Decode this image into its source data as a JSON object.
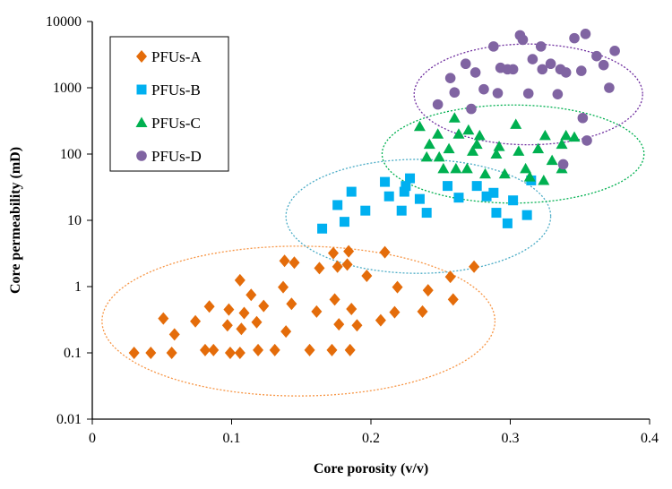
{
  "chart_data": {
    "type": "scatter",
    "xlabel": "Core porosity (v/v)",
    "ylabel": "Core permeability (mD)",
    "x_scale": "linear",
    "y_scale": "log",
    "xlim": [
      0,
      0.4
    ],
    "ylim": [
      0.01,
      10000
    ],
    "x_ticks": [
      {
        "value": 0,
        "label": "0"
      },
      {
        "value": 0.1,
        "label": "0.1"
      },
      {
        "value": 0.2,
        "label": "0.2"
      },
      {
        "value": 0.3,
        "label": "0.3"
      },
      {
        "value": 0.4,
        "label": "0.4"
      }
    ],
    "y_ticks": [
      {
        "value": 0.01,
        "label": "0.01"
      },
      {
        "value": 0.1,
        "label": "0.1"
      },
      {
        "value": 1,
        "label": "1"
      },
      {
        "value": 10,
        "label": "10"
      },
      {
        "value": 100,
        "label": "100"
      },
      {
        "value": 1000,
        "label": "1000"
      },
      {
        "value": 10000,
        "label": "10000"
      }
    ],
    "grid": false,
    "legend_position": "top-left",
    "series": [
      {
        "name": "PFUs-A",
        "marker": "diamond",
        "color": "#E46C0A",
        "ellipse_color": "#F79646",
        "points": [
          [
            0.03,
            0.1
          ],
          [
            0.042,
            0.1
          ],
          [
            0.051,
            0.33
          ],
          [
            0.057,
            0.1
          ],
          [
            0.059,
            0.19
          ],
          [
            0.074,
            0.3
          ],
          [
            0.081,
            0.11
          ],
          [
            0.084,
            0.5
          ],
          [
            0.087,
            0.11
          ],
          [
            0.097,
            0.26
          ],
          [
            0.098,
            0.45
          ],
          [
            0.099,
            0.1
          ],
          [
            0.106,
            0.1
          ],
          [
            0.106,
            1.25
          ],
          [
            0.107,
            0.23
          ],
          [
            0.109,
            0.4
          ],
          [
            0.114,
            0.75
          ],
          [
            0.118,
            0.29
          ],
          [
            0.119,
            0.11
          ],
          [
            0.123,
            0.51
          ],
          [
            0.131,
            0.11
          ],
          [
            0.137,
            0.98
          ],
          [
            0.138,
            2.45
          ],
          [
            0.139,
            0.21
          ],
          [
            0.143,
            0.55
          ],
          [
            0.145,
            2.3
          ],
          [
            0.156,
            0.11
          ],
          [
            0.161,
            0.42
          ],
          [
            0.163,
            1.9
          ],
          [
            0.172,
            0.11
          ],
          [
            0.173,
            3.2
          ],
          [
            0.174,
            0.64
          ],
          [
            0.176,
            2.0
          ],
          [
            0.177,
            0.27
          ],
          [
            0.183,
            2.15
          ],
          [
            0.184,
            3.4
          ],
          [
            0.185,
            0.11
          ],
          [
            0.186,
            0.46
          ],
          [
            0.19,
            0.26
          ],
          [
            0.197,
            1.45
          ],
          [
            0.207,
            0.31
          ],
          [
            0.21,
            3.3
          ],
          [
            0.217,
            0.41
          ],
          [
            0.219,
            0.98
          ],
          [
            0.237,
            0.42
          ],
          [
            0.241,
            0.88
          ],
          [
            0.257,
            1.4
          ],
          [
            0.259,
            0.64
          ],
          [
            0.274,
            2.0
          ]
        ]
      },
      {
        "name": "PFUs-B",
        "marker": "square",
        "color": "#00B0F0",
        "ellipse_color": "#4BACC6",
        "points": [
          [
            0.165,
            7.5
          ],
          [
            0.176,
            17
          ],
          [
            0.181,
            9.5
          ],
          [
            0.186,
            27
          ],
          [
            0.196,
            14
          ],
          [
            0.21,
            38
          ],
          [
            0.213,
            23
          ],
          [
            0.222,
            14
          ],
          [
            0.224,
            27
          ],
          [
            0.225,
            33
          ],
          [
            0.228,
            43
          ],
          [
            0.235,
            21
          ],
          [
            0.24,
            13
          ],
          [
            0.255,
            33
          ],
          [
            0.263,
            22
          ],
          [
            0.276,
            33
          ],
          [
            0.283,
            23
          ],
          [
            0.288,
            26
          ],
          [
            0.29,
            13
          ],
          [
            0.298,
            9
          ],
          [
            0.302,
            20
          ],
          [
            0.312,
            12
          ],
          [
            0.315,
            40
          ]
        ]
      },
      {
        "name": "PFUs-C",
        "marker": "triangle",
        "color": "#00B050",
        "ellipse_color": "#00B050",
        "points": [
          [
            0.235,
            260
          ],
          [
            0.24,
            90
          ],
          [
            0.242,
            140
          ],
          [
            0.248,
            200
          ],
          [
            0.249,
            90
          ],
          [
            0.252,
            60
          ],
          [
            0.256,
            120
          ],
          [
            0.26,
            350
          ],
          [
            0.261,
            60
          ],
          [
            0.263,
            200
          ],
          [
            0.269,
            60
          ],
          [
            0.27,
            230
          ],
          [
            0.273,
            110
          ],
          [
            0.276,
            140
          ],
          [
            0.278,
            190
          ],
          [
            0.282,
            50
          ],
          [
            0.29,
            100
          ],
          [
            0.292,
            130
          ],
          [
            0.296,
            50
          ],
          [
            0.304,
            280
          ],
          [
            0.306,
            110
          ],
          [
            0.311,
            60
          ],
          [
            0.314,
            45
          ],
          [
            0.32,
            120
          ],
          [
            0.324,
            40
          ],
          [
            0.325,
            190
          ],
          [
            0.33,
            80
          ],
          [
            0.337,
            140
          ],
          [
            0.34,
            190
          ],
          [
            0.346,
            180
          ],
          [
            0.337,
            60
          ]
        ]
      },
      {
        "name": "PFUs-D",
        "marker": "circle",
        "color": "#8064A2",
        "ellipse_color": "#7030A0",
        "points": [
          [
            0.248,
            560
          ],
          [
            0.257,
            1400
          ],
          [
            0.26,
            850
          ],
          [
            0.268,
            2300
          ],
          [
            0.272,
            480
          ],
          [
            0.275,
            1700
          ],
          [
            0.281,
            950
          ],
          [
            0.288,
            4200
          ],
          [
            0.291,
            830
          ],
          [
            0.293,
            2000
          ],
          [
            0.298,
            1900
          ],
          [
            0.302,
            1900
          ],
          [
            0.307,
            6200
          ],
          [
            0.309,
            5300
          ],
          [
            0.313,
            820
          ],
          [
            0.316,
            2700
          ],
          [
            0.322,
            4200
          ],
          [
            0.323,
            1900
          ],
          [
            0.329,
            2300
          ],
          [
            0.334,
            800
          ],
          [
            0.336,
            1900
          ],
          [
            0.34,
            1700
          ],
          [
            0.346,
            5600
          ],
          [
            0.351,
            1800
          ],
          [
            0.352,
            350
          ],
          [
            0.354,
            6500
          ],
          [
            0.355,
            160
          ],
          [
            0.362,
            3000
          ],
          [
            0.367,
            2200
          ],
          [
            0.371,
            1000
          ],
          [
            0.375,
            3600
          ],
          [
            0.338,
            70
          ]
        ]
      }
    ],
    "ellipses": [
      {
        "series": "PFUs-A",
        "cx": 0.148,
        "cy_log": -0.52,
        "rx": 0.141,
        "ry_log": 1.13
      },
      {
        "series": "PFUs-B",
        "cx": 0.234,
        "cy_log": 1.06,
        "rx": 0.095,
        "ry_log": 0.86
      },
      {
        "series": "PFUs-C",
        "cx": 0.302,
        "cy_log": 2.0,
        "rx": 0.094,
        "ry_log": 0.74
      },
      {
        "series": "PFUs-D",
        "cx": 0.313,
        "cy_log": 2.9,
        "rx": 0.082,
        "ry_log": 0.76
      }
    ]
  }
}
